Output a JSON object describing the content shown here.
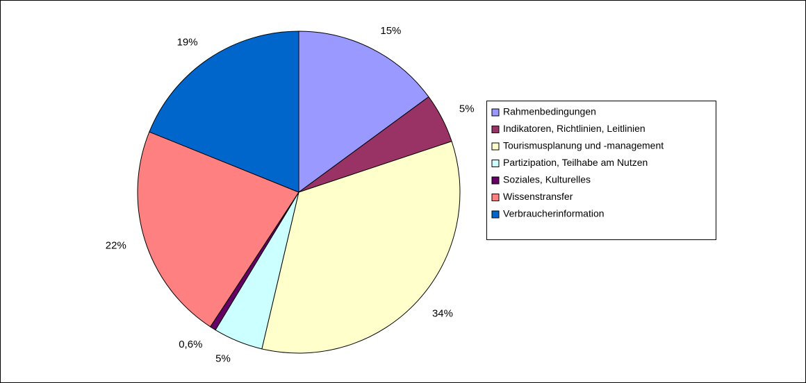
{
  "chart_data": {
    "type": "pie",
    "categories": [
      "Rahmenbedingungen",
      "Indikatoren, Richtlinien, Leitlinien",
      "Tourismusplanung und -management",
      "Partizipation, Teilhabe am Nutzen",
      "Soziales, Kulturelles",
      "Wissenstransfer",
      "Verbraucherinformation"
    ],
    "values": [
      15,
      5,
      34,
      5,
      0.6,
      22,
      19
    ],
    "value_labels": [
      "15%",
      "5%",
      "34%",
      "5%",
      "0,6%",
      "22%",
      "19%"
    ],
    "colors": [
      "#9999ff",
      "#993366",
      "#ffffcc",
      "#ccffff",
      "#660066",
      "#ff8080",
      "#0066cc"
    ],
    "legend": "right"
  }
}
